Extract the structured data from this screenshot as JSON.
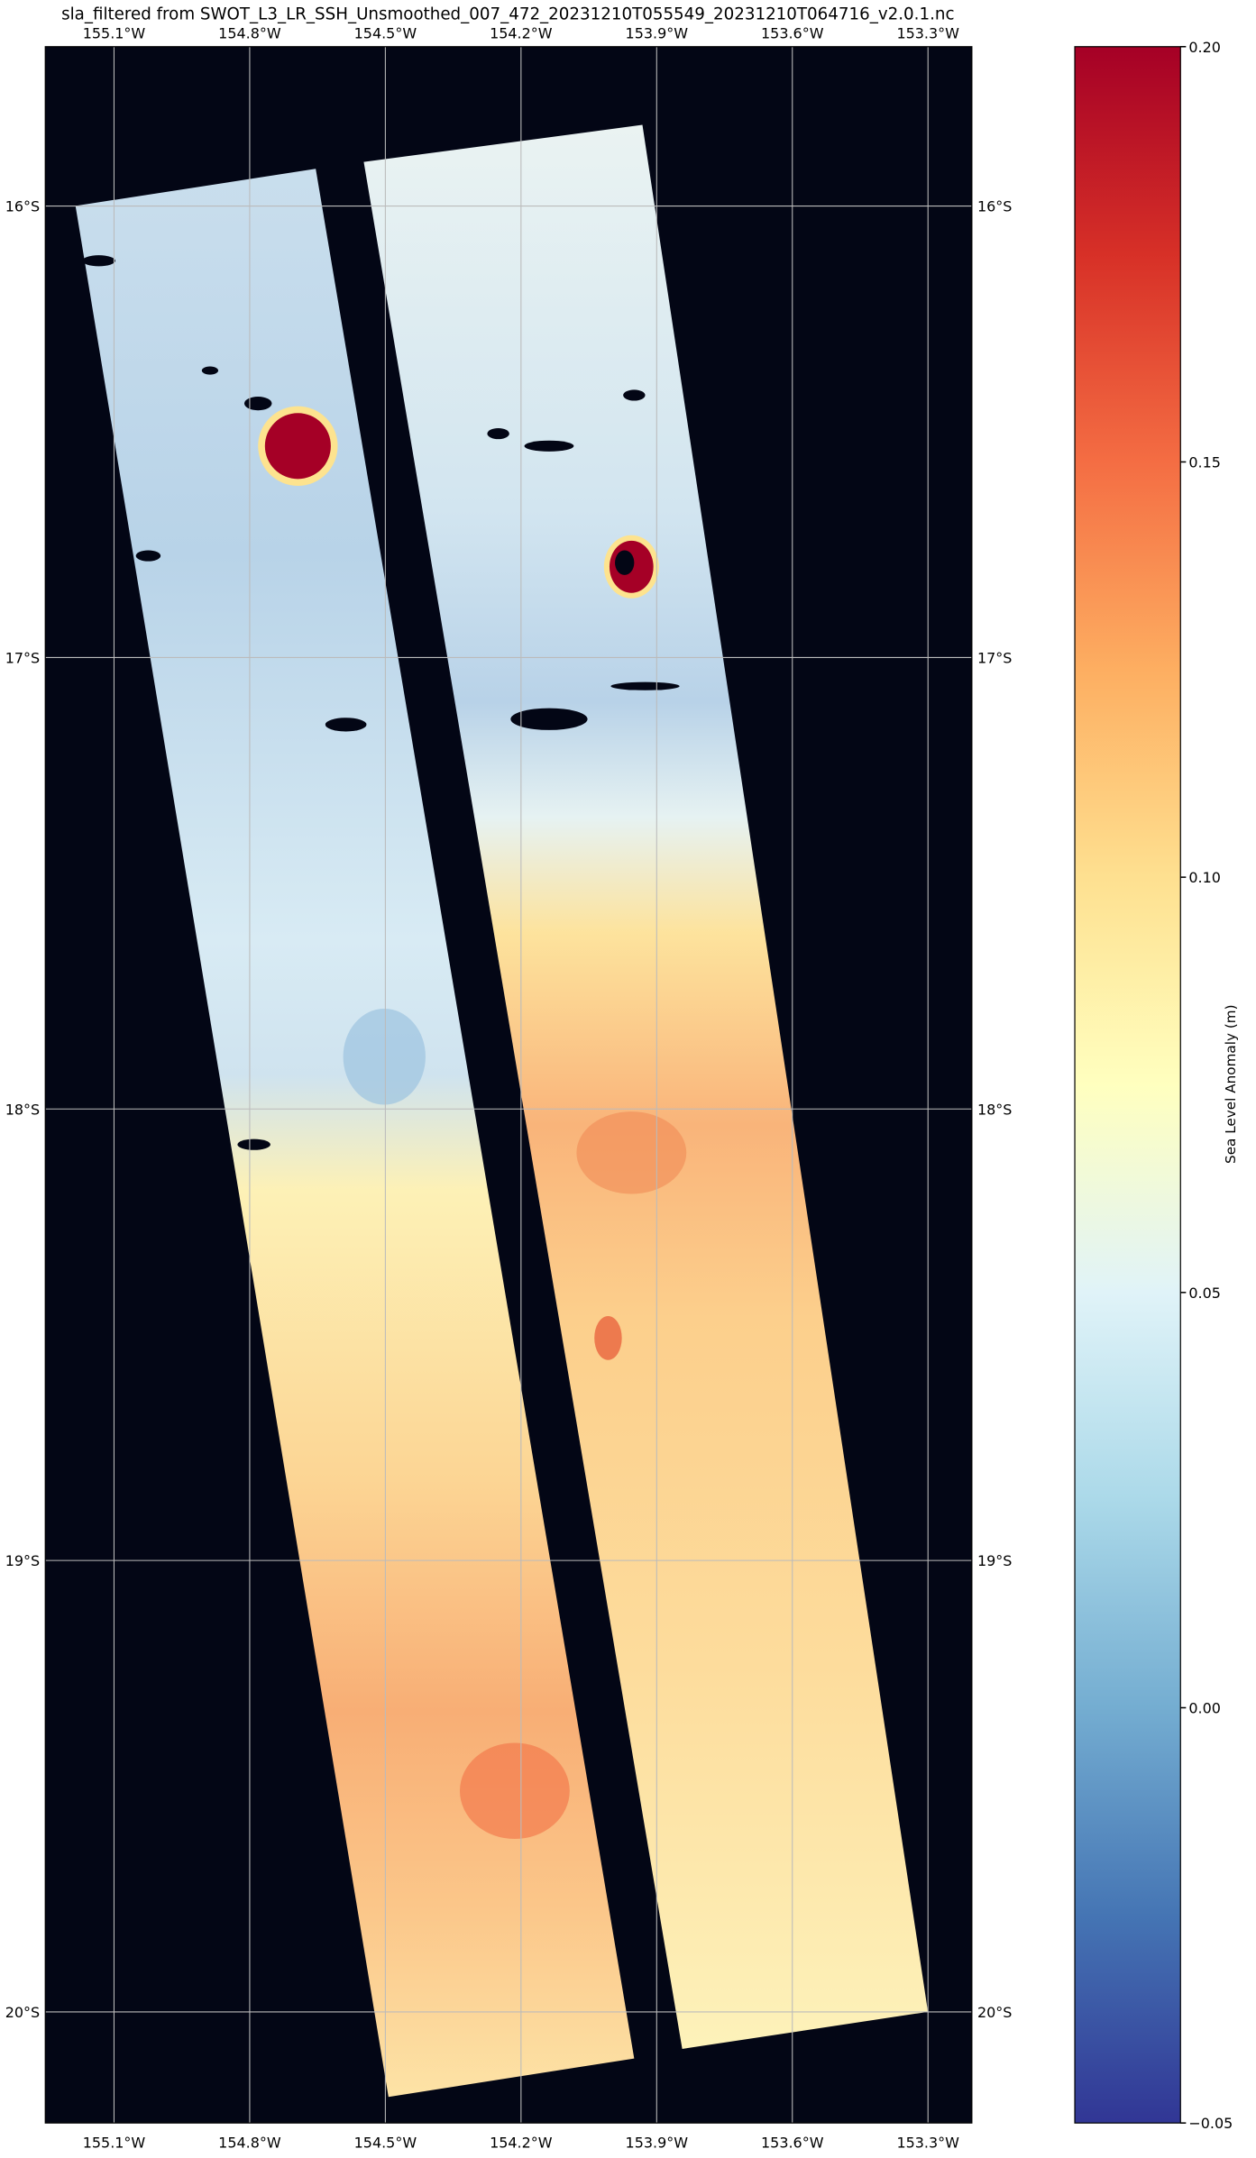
{
  "chart_data": {
    "type": "map",
    "title": "sla_filtered from SWOT_L3_LR_SSH_Unsmoothed_007_472_20231210T055549_20231210T064716_v2.0.1.nc",
    "colorbar_label": "Sea Level Anomaly (m)",
    "xlim": [
      -155.252,
      -153.203
    ],
    "ylim": [
      -20.246,
      -15.647
    ],
    "xticks": [
      {
        "value": -155.1,
        "label": "155.1°W"
      },
      {
        "value": -154.8,
        "label": "154.8°W"
      },
      {
        "value": -154.5,
        "label": "154.5°W"
      },
      {
        "value": -154.2,
        "label": "154.2°W"
      },
      {
        "value": -153.9,
        "label": "153.9°W"
      },
      {
        "value": -153.6,
        "label": "153.6°W"
      },
      {
        "value": -153.3,
        "label": "153.3°W"
      }
    ],
    "yticks": [
      {
        "value": -16,
        "label": "16°S"
      },
      {
        "value": -17,
        "label": "17°S"
      },
      {
        "value": -18,
        "label": "18°S"
      },
      {
        "value": -19,
        "label": "19°S"
      },
      {
        "value": -20,
        "label": "20°S"
      }
    ],
    "clim": [
      -0.05,
      0.2
    ],
    "cticks": [
      {
        "value": 0.2,
        "label": "0.20"
      },
      {
        "value": 0.15,
        "label": "0.15"
      },
      {
        "value": 0.1,
        "label": "0.10"
      },
      {
        "value": 0.05,
        "label": "0.05"
      },
      {
        "value": 0,
        "label": "0.00"
      },
      {
        "value": -0.05,
        "label": "−0.05"
      }
    ],
    "colormap": [
      "#313695",
      "#4575b4",
      "#74add1",
      "#abd9e9",
      "#e0f3f8",
      "#ffffbf",
      "#fee090",
      "#fdae61",
      "#f46d43",
      "#d73027",
      "#a50026"
    ],
    "background": "#030615",
    "grid": true
  }
}
